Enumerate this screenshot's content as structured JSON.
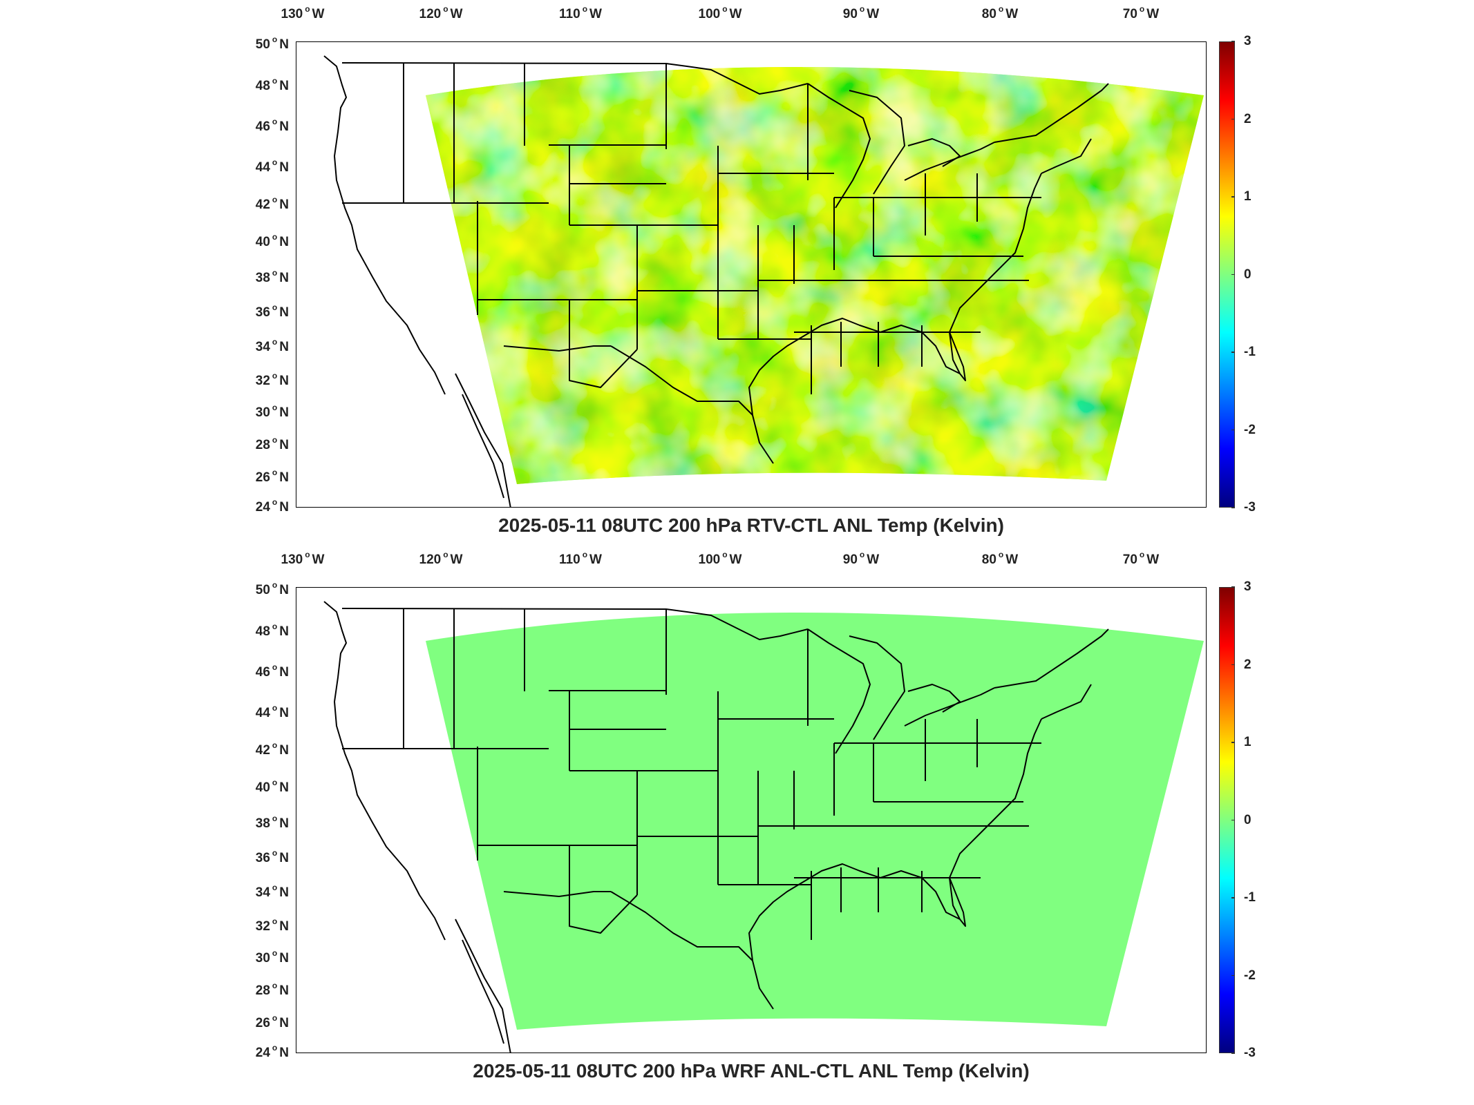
{
  "lon_labels": [
    {
      "deg": "130",
      "hemi": "W"
    },
    {
      "deg": "120",
      "hemi": "W"
    },
    {
      "deg": "110",
      "hemi": "W"
    },
    {
      "deg": "100",
      "hemi": "W"
    },
    {
      "deg": "90",
      "hemi": "W"
    },
    {
      "deg": "80",
      "hemi": "W"
    },
    {
      "deg": "70",
      "hemi": "W"
    }
  ],
  "lat_labels": [
    {
      "deg": "50",
      "hemi": "N"
    },
    {
      "deg": "48",
      "hemi": "N"
    },
    {
      "deg": "46",
      "hemi": "N"
    },
    {
      "deg": "44",
      "hemi": "N"
    },
    {
      "deg": "42",
      "hemi": "N"
    },
    {
      "deg": "40",
      "hemi": "N"
    },
    {
      "deg": "38",
      "hemi": "N"
    },
    {
      "deg": "36",
      "hemi": "N"
    },
    {
      "deg": "34",
      "hemi": "N"
    },
    {
      "deg": "32",
      "hemi": "N"
    },
    {
      "deg": "30",
      "hemi": "N"
    },
    {
      "deg": "28",
      "hemi": "N"
    },
    {
      "deg": "26",
      "hemi": "N"
    },
    {
      "deg": "24",
      "hemi": "N"
    }
  ],
  "colorbar": {
    "ticks": [
      "3",
      "2",
      "1",
      "0",
      "-1",
      "-2",
      "-3"
    ],
    "range": [
      -3,
      3
    ],
    "colormap": "jet"
  },
  "panels": [
    {
      "title": "2025-05-11 08UTC 200 hPa RTV-CTL ANL Temp (Kelvin)",
      "field": "varied",
      "typical_value_range": [
        -0.8,
        1.3
      ]
    },
    {
      "title": "2025-05-11 08UTC 200 hPa WRF ANL-CTL ANL Temp (Kelvin)",
      "field": "uniform",
      "typical_value_range": [
        0,
        0
      ]
    }
  ],
  "colors": {
    "zero_green": "#80ff80",
    "line": "#000000"
  }
}
